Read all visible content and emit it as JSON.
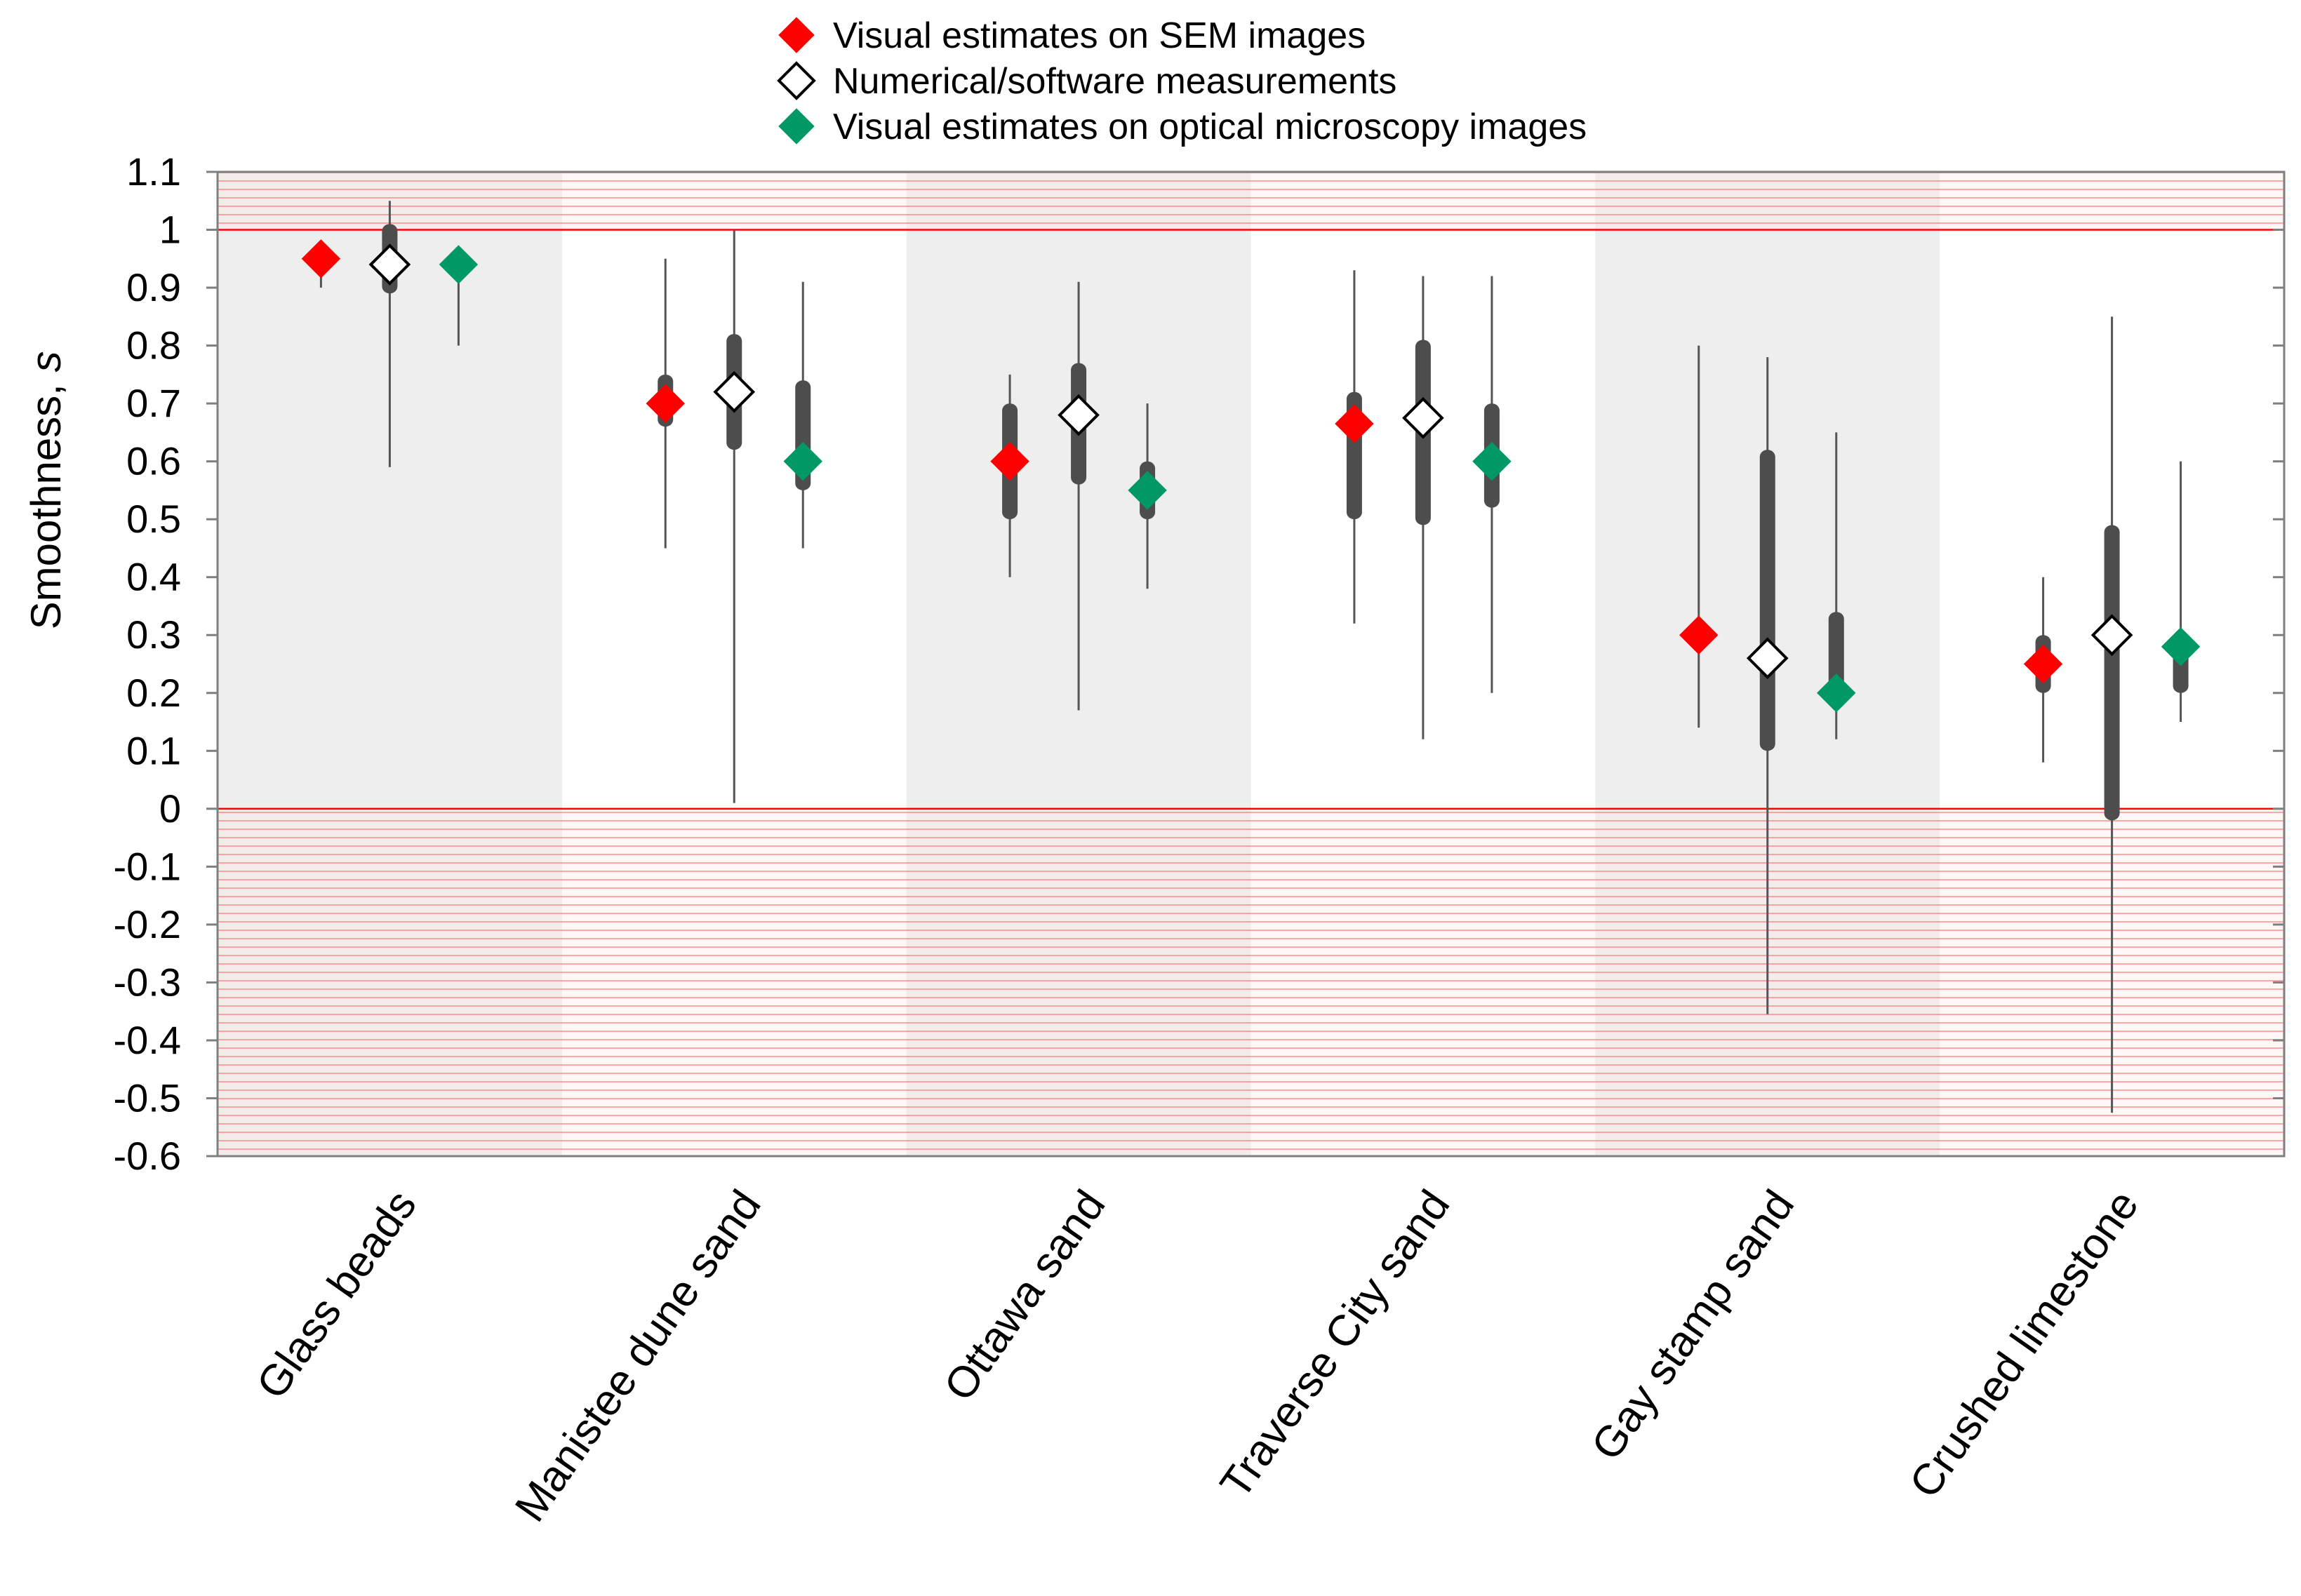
{
  "chart_data": {
    "type": "box",
    "title": "",
    "xlabel": "",
    "ylabel": "Smoothness, ",
    "ylabel_symbol": "s",
    "ylim": [
      -0.6,
      1.1
    ],
    "yticks": [
      "1.1",
      "1",
      "0.9",
      "0.8",
      "0.7",
      "0.6",
      "0.5",
      "0.4",
      "0.3",
      "0.2",
      "0.1",
      "0",
      "-0.1",
      "-0.2",
      "-0.3",
      "-0.4",
      "-0.5",
      "-0.6"
    ],
    "shaded_out_of_range": [
      {
        "from": 1.0,
        "to": 1.1
      },
      {
        "from": -0.6,
        "to": 0.0
      }
    ],
    "categories": [
      "Glass beads",
      "Manistee dune sand",
      "Ottawa sand",
      "Traverse City sand",
      "Gay stamp sand",
      "Crushed limestone"
    ],
    "series": [
      {
        "name": "Visual estimates on SEM images",
        "marker_color": "#ff0000",
        "marker_fill": "#ff0000",
        "points": [
          {
            "value": 0.95,
            "whisker": [
              0.9,
              0.97
            ],
            "iqr": null
          },
          {
            "value": 0.7,
            "whisker": [
              0.45,
              0.95
            ],
            "iqr": [
              0.66,
              0.75
            ]
          },
          {
            "value": 0.6,
            "whisker": [
              0.4,
              0.75
            ],
            "iqr": [
              0.5,
              0.7
            ]
          },
          {
            "value": 0.665,
            "whisker": [
              0.32,
              0.93
            ],
            "iqr": [
              0.5,
              0.72
            ]
          },
          {
            "value": 0.3,
            "whisker": [
              0.14,
              0.8
            ],
            "iqr": [
              0.28,
              0.32
            ]
          },
          {
            "value": 0.25,
            "whisker": [
              0.08,
              0.4
            ],
            "iqr": [
              0.2,
              0.3
            ]
          }
        ]
      },
      {
        "name": "Numerical/software measurements",
        "marker_color": "#000000",
        "marker_fill": "#ffffff",
        "points": [
          {
            "value": 0.94,
            "whisker": [
              0.59,
              1.05
            ],
            "iqr": [
              0.89,
              1.01
            ]
          },
          {
            "value": 0.72,
            "whisker": [
              0.01,
              1.0
            ],
            "iqr": [
              0.62,
              0.82
            ]
          },
          {
            "value": 0.68,
            "whisker": [
              0.17,
              0.91
            ],
            "iqr": [
              0.56,
              0.77
            ]
          },
          {
            "value": 0.675,
            "whisker": [
              0.12,
              0.92
            ],
            "iqr": [
              0.49,
              0.81
            ]
          },
          {
            "value": 0.26,
            "whisker": [
              -0.355,
              0.78
            ],
            "iqr": [
              0.1,
              0.62
            ]
          },
          {
            "value": 0.3,
            "whisker": [
              -0.525,
              0.85
            ],
            "iqr": [
              -0.02,
              0.49
            ]
          }
        ]
      },
      {
        "name": "Visual estimates on optical microscopy images",
        "marker_color": "#009966",
        "marker_fill": "#009966",
        "points": [
          {
            "value": 0.94,
            "whisker": [
              0.8,
              0.97
            ],
            "iqr": null
          },
          {
            "value": 0.6,
            "whisker": [
              0.45,
              0.91
            ],
            "iqr": [
              0.55,
              0.74
            ]
          },
          {
            "value": 0.55,
            "whisker": [
              0.38,
              0.7
            ],
            "iqr": [
              0.5,
              0.6
            ]
          },
          {
            "value": 0.6,
            "whisker": [
              0.2,
              0.92
            ],
            "iqr": [
              0.52,
              0.7
            ]
          },
          {
            "value": 0.2,
            "whisker": [
              0.12,
              0.65
            ],
            "iqr": [
              0.18,
              0.34
            ]
          },
          {
            "value": 0.28,
            "whisker": [
              0.15,
              0.6
            ],
            "iqr": [
              0.2,
              0.3
            ]
          }
        ]
      }
    ],
    "legend": {
      "position": "top-center",
      "entries": [
        "Visual estimates on SEM images",
        "Numerical/software measurements",
        "Visual estimates on optical microscopy images"
      ]
    },
    "colors": {
      "band_gray": "#eeeeee",
      "hatch_red": "#ff0000",
      "box_dark": "#4d4d4d",
      "whisker": "#555555",
      "frame": "#7f7f7f"
    }
  }
}
